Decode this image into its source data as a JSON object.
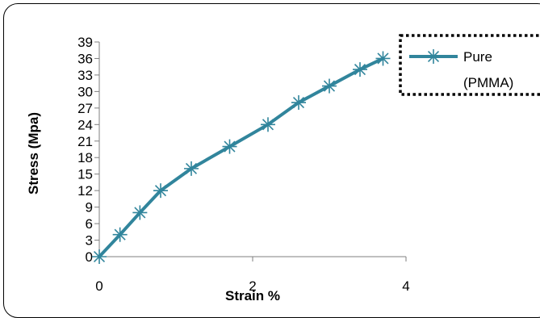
{
  "chart_data": {
    "type": "line",
    "xlabel": "Strain %",
    "ylabel": "Stress (Mpa)",
    "xlim": [
      0,
      4
    ],
    "ylim": [
      0,
      39
    ],
    "xticks": [
      0,
      2,
      4
    ],
    "yticks": [
      0,
      3,
      6,
      9,
      12,
      15,
      18,
      21,
      24,
      27,
      30,
      33,
      36,
      39
    ],
    "grid": false,
    "legend_position": "top-right",
    "series": [
      {
        "name": "Pure (PMMA)",
        "name_lines": [
          "Pure",
          "(PMMA)"
        ],
        "color": "#31859C",
        "marker": "asterisk",
        "x": [
          0,
          0.27,
          0.53,
          0.8,
          1.2,
          1.7,
          2.2,
          2.6,
          3.0,
          3.4,
          3.7
        ],
        "y": [
          0,
          4,
          8,
          12,
          16,
          20,
          24,
          28,
          31,
          34,
          36
        ]
      }
    ]
  }
}
